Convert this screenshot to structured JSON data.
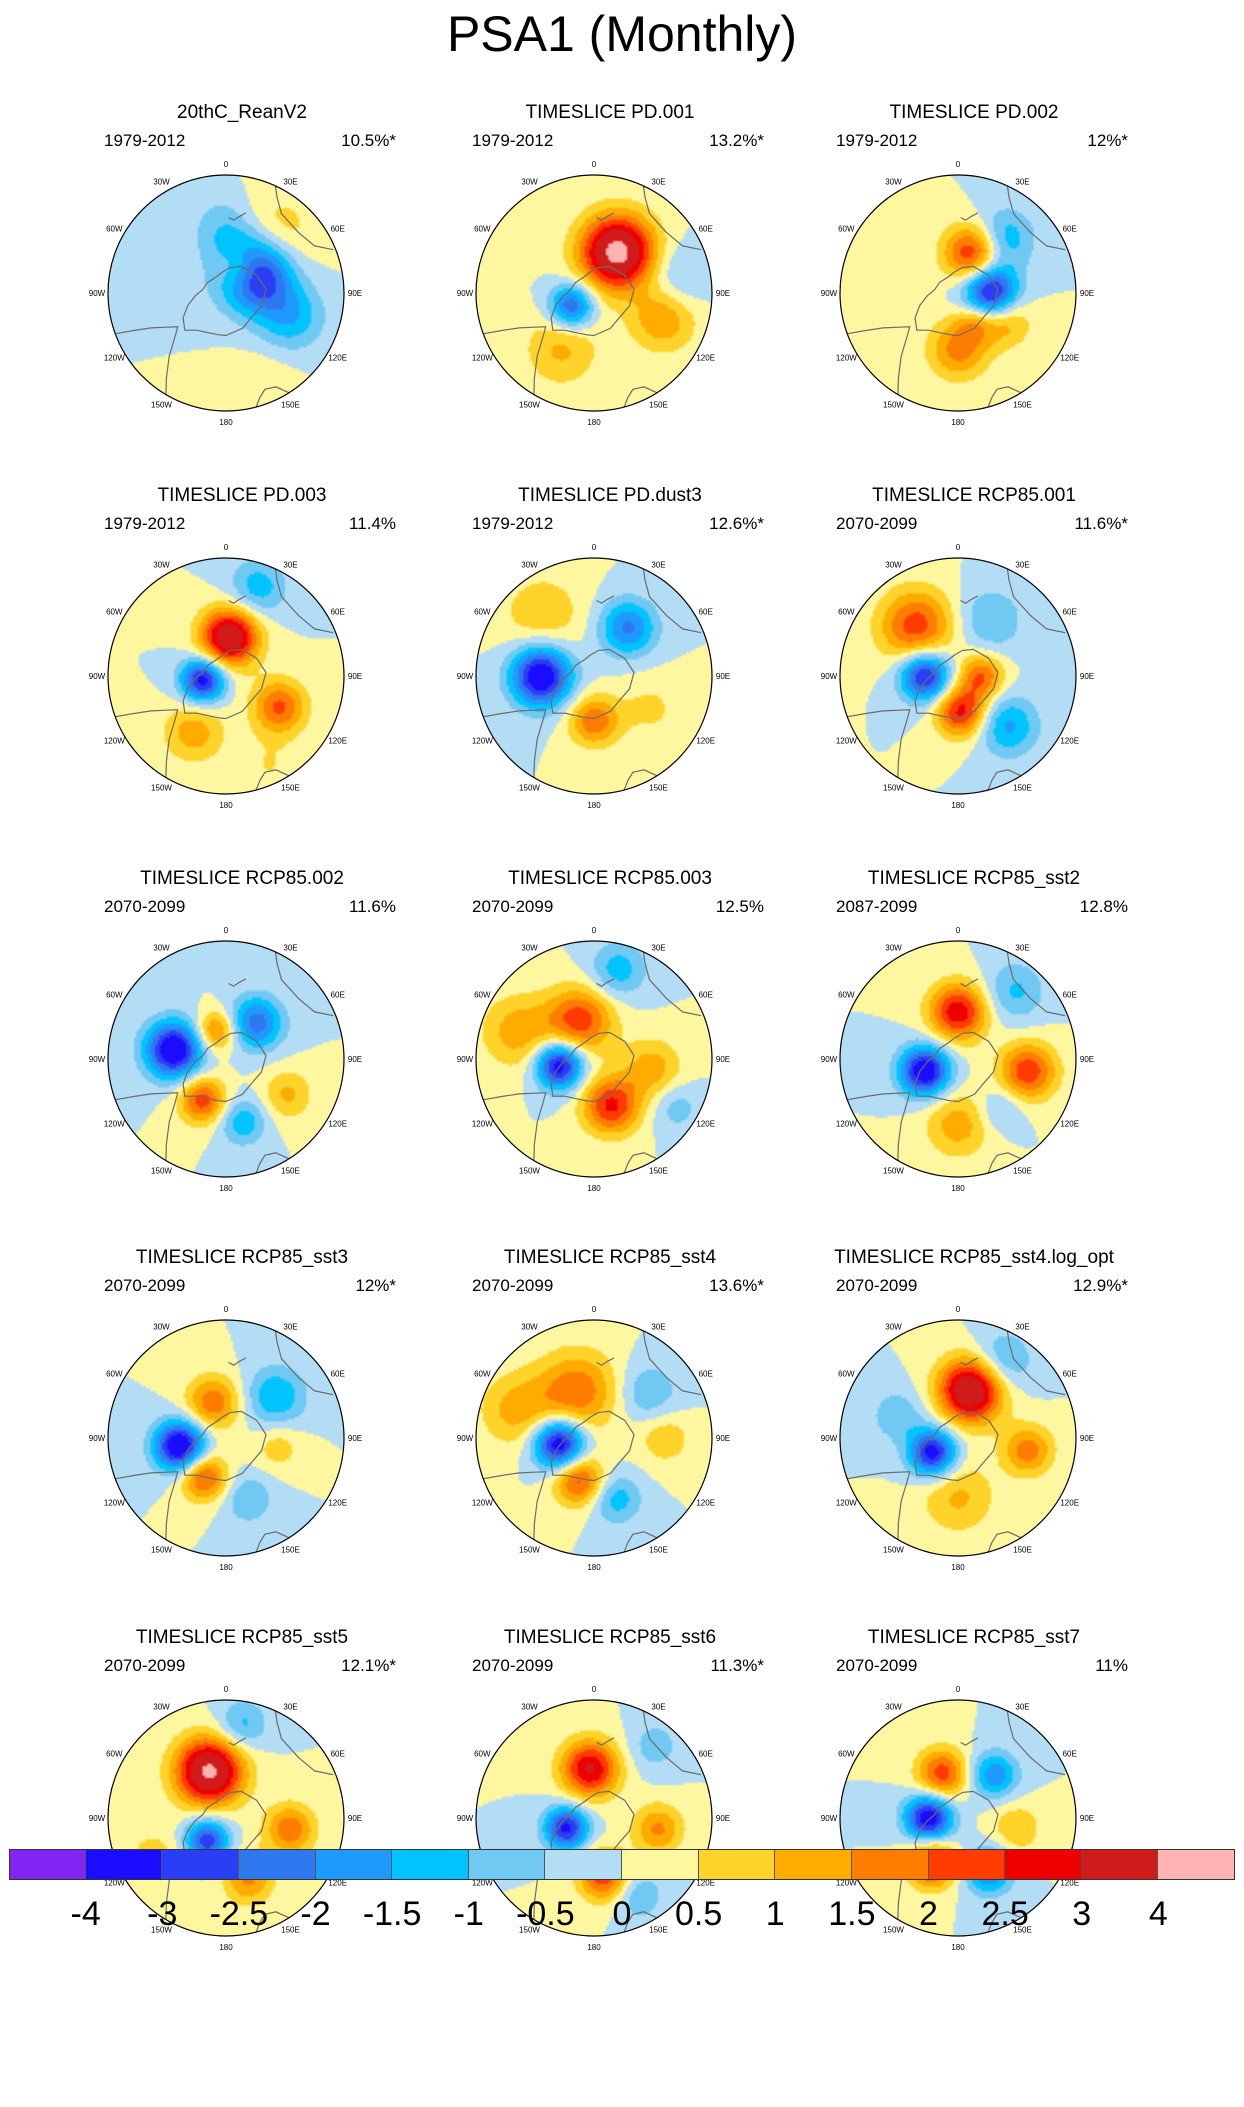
{
  "title": "PSA1 (Monthly)",
  "lon_labels": [
    "0",
    "30E",
    "60E",
    "90E",
    "120E",
    "150E",
    "180",
    "150W",
    "120W",
    "90W",
    "60W",
    "30W"
  ],
  "panels": [
    {
      "title": "20thC_ReanV2",
      "period": "1979-2012",
      "variance": "10.5%*",
      "blobs": [
        {
          "lon": 127,
          "r": 0.3,
          "a": -3.9,
          "s": 0.22
        },
        {
          "lon": 152,
          "r": 0.24,
          "a": 1.7,
          "s": 0.14
        },
        {
          "lon": 140,
          "r": 0.62,
          "a": 1.1,
          "s": 0.25
        },
        {
          "lon": 70,
          "r": 0.58,
          "a": -1.4,
          "s": 0.2
        },
        {
          "lon": 180,
          "r": 0.55,
          "a": -0.9,
          "s": 0.2
        },
        {
          "lon": 20,
          "r": 0.85,
          "a": 0.5,
          "s": 0.2
        }
      ]
    },
    {
      "title": "TIMESLICE PD.001",
      "period": "1979-2012",
      "variance": "13.2%*",
      "blobs": [
        {
          "lon": 300,
          "r": 0.22,
          "a": -2.6,
          "s": 0.13
        },
        {
          "lon": 150,
          "r": 0.4,
          "a": 4.4,
          "s": 0.22
        },
        {
          "lon": 70,
          "r": 0.62,
          "a": 1.5,
          "s": 0.2
        },
        {
          "lon": 330,
          "r": 0.55,
          "a": 1.1,
          "s": 0.22
        },
        {
          "lon": 100,
          "r": 0.7,
          "a": -0.8,
          "s": 0.2
        }
      ]
    },
    {
      "title": "TIMESLICE PD.002",
      "period": "1979-2012",
      "variance": "12%*",
      "blobs": [
        {
          "lon": 90,
          "r": 0.28,
          "a": -3.7,
          "s": 0.16
        },
        {
          "lon": 160,
          "r": 0.36,
          "a": 2.7,
          "s": 0.17
        },
        {
          "lon": 0,
          "r": 0.48,
          "a": 1.7,
          "s": 0.18
        },
        {
          "lon": 60,
          "r": 0.45,
          "a": 1.5,
          "s": 0.16
        },
        {
          "lon": 140,
          "r": 0.6,
          "a": -1.5,
          "s": 0.18
        },
        {
          "lon": 30,
          "r": 0.28,
          "a": 1.1,
          "s": 0.12
        }
      ]
    },
    {
      "title": "TIMESLICE PD.003",
      "period": "1979-2012",
      "variance": "11.4%",
      "blobs": [
        {
          "lon": 280,
          "r": 0.2,
          "a": -3.4,
          "s": 0.13
        },
        {
          "lon": 175,
          "r": 0.33,
          "a": 3.8,
          "s": 0.17
        },
        {
          "lon": 60,
          "r": 0.52,
          "a": 2.1,
          "s": 0.16
        },
        {
          "lon": 330,
          "r": 0.55,
          "a": 1.3,
          "s": 0.18
        },
        {
          "lon": 160,
          "r": 0.8,
          "a": -1.3,
          "s": 0.17
        },
        {
          "lon": 25,
          "r": 0.85,
          "a": 0.5,
          "s": 0.2
        }
      ]
    },
    {
      "title": "TIMESLICE PD.dust3",
      "period": "1979-2012",
      "variance": "12.6%*",
      "blobs": [
        {
          "lon": 270,
          "r": 0.45,
          "a": -3.8,
          "s": 0.18
        },
        {
          "lon": 0,
          "r": 0.38,
          "a": 1.9,
          "s": 0.15
        },
        {
          "lon": 145,
          "r": 0.5,
          "a": -2.1,
          "s": 0.17
        },
        {
          "lon": 220,
          "r": 0.68,
          "a": 0.9,
          "s": 0.25
        },
        {
          "lon": 60,
          "r": 0.55,
          "a": 0.6,
          "s": 0.2
        }
      ]
    },
    {
      "title": "TIMESLICE RCP85.001",
      "period": "2070-2099",
      "variance": "11.6%*",
      "blobs": [
        {
          "lon": 270,
          "r": 0.28,
          "a": -3.3,
          "s": 0.15
        },
        {
          "lon": 5,
          "r": 0.3,
          "a": 2.7,
          "s": 0.15
        },
        {
          "lon": 90,
          "r": 0.2,
          "a": 2.0,
          "s": 0.13
        },
        {
          "lon": 220,
          "r": 0.55,
          "a": 2.3,
          "s": 0.22
        },
        {
          "lon": 45,
          "r": 0.6,
          "a": -1.6,
          "s": 0.18
        },
        {
          "lon": 150,
          "r": 0.55,
          "a": -1.0,
          "s": 0.2
        }
      ]
    },
    {
      "title": "TIMESLICE RCP85.002",
      "period": "2070-2099",
      "variance": "11.6%",
      "blobs": [
        {
          "lon": 260,
          "r": 0.45,
          "a": -3.8,
          "s": 0.17
        },
        {
          "lon": 330,
          "r": 0.4,
          "a": 2.3,
          "s": 0.14
        },
        {
          "lon": 200,
          "r": 0.25,
          "a": 1.9,
          "s": 0.12
        },
        {
          "lon": 140,
          "r": 0.4,
          "a": -2.3,
          "s": 0.16
        },
        {
          "lon": 15,
          "r": 0.55,
          "a": -1.4,
          "s": 0.14
        },
        {
          "lon": 60,
          "r": 0.6,
          "a": 1.1,
          "s": 0.15
        }
      ]
    },
    {
      "title": "TIMESLICE RCP85.003",
      "period": "2070-2099",
      "variance": "12.5%",
      "blobs": [
        {
          "lon": 280,
          "r": 0.3,
          "a": -3.6,
          "s": 0.14
        },
        {
          "lon": 20,
          "r": 0.42,
          "a": 2.6,
          "s": 0.17
        },
        {
          "lon": 200,
          "r": 0.35,
          "a": 2.3,
          "s": 0.2
        },
        {
          "lon": 250,
          "r": 0.68,
          "a": 1.3,
          "s": 0.22
        },
        {
          "lon": 80,
          "r": 0.5,
          "a": 1.3,
          "s": 0.18
        },
        {
          "lon": 165,
          "r": 0.78,
          "a": -1.3,
          "s": 0.17
        },
        {
          "lon": 60,
          "r": 0.8,
          "a": -0.8,
          "s": 0.15
        }
      ]
    },
    {
      "title": "TIMESLICE RCP85_sst2",
      "period": "2087-2099",
      "variance": "12.8%",
      "blobs": [
        {
          "lon": 290,
          "r": 0.3,
          "a": -3.7,
          "s": 0.15
        },
        {
          "lon": 180,
          "r": 0.4,
          "a": 2.9,
          "s": 0.17
        },
        {
          "lon": 80,
          "r": 0.6,
          "a": 2.4,
          "s": 0.17
        },
        {
          "lon": 0,
          "r": 0.55,
          "a": 1.3,
          "s": 0.2
        },
        {
          "lon": 140,
          "r": 0.75,
          "a": -1.1,
          "s": 0.18
        },
        {
          "lon": 40,
          "r": 0.55,
          "a": -0.8,
          "s": 0.14
        }
      ]
    },
    {
      "title": "TIMESLICE RCP85_sst3",
      "period": "2070-2099",
      "variance": "12%*",
      "blobs": [
        {
          "lon": 280,
          "r": 0.4,
          "a": -3.9,
          "s": 0.15
        },
        {
          "lon": 330,
          "r": 0.38,
          "a": 2.3,
          "s": 0.14
        },
        {
          "lon": 200,
          "r": 0.32,
          "a": 1.9,
          "s": 0.16
        },
        {
          "lon": 130,
          "r": 0.55,
          "a": -1.5,
          "s": 0.18
        },
        {
          "lon": 20,
          "r": 0.55,
          "a": -1.0,
          "s": 0.15
        },
        {
          "lon": 80,
          "r": 0.45,
          "a": 0.8,
          "s": 0.14
        }
      ]
    },
    {
      "title": "TIMESLICE RCP85_sst4",
      "period": "2070-2099",
      "variance": "13.6%*",
      "blobs": [
        {
          "lon": 280,
          "r": 0.3,
          "a": -3.8,
          "s": 0.15
        },
        {
          "lon": 340,
          "r": 0.38,
          "a": 2.3,
          "s": 0.15
        },
        {
          "lon": 200,
          "r": 0.42,
          "a": 1.9,
          "s": 0.24
        },
        {
          "lon": 250,
          "r": 0.7,
          "a": 1.2,
          "s": 0.22
        },
        {
          "lon": 20,
          "r": 0.55,
          "a": -1.3,
          "s": 0.15
        },
        {
          "lon": 130,
          "r": 0.6,
          "a": -1.0,
          "s": 0.18
        },
        {
          "lon": 90,
          "r": 0.6,
          "a": 0.9,
          "s": 0.16
        }
      ]
    },
    {
      "title": "TIMESLICE RCP85_sst4.log_opt",
      "period": "2070-2099",
      "variance": "12.9%*",
      "blobs": [
        {
          "lon": 300,
          "r": 0.25,
          "a": -3.4,
          "s": 0.14
        },
        {
          "lon": 165,
          "r": 0.42,
          "a": 4.0,
          "s": 0.19
        },
        {
          "lon": 80,
          "r": 0.6,
          "a": 1.8,
          "s": 0.15
        },
        {
          "lon": 0,
          "r": 0.5,
          "a": 1.1,
          "s": 0.22
        },
        {
          "lon": 150,
          "r": 0.75,
          "a": -1.2,
          "s": 0.18
        },
        {
          "lon": 250,
          "r": 0.55,
          "a": -0.9,
          "s": 0.16
        }
      ]
    },
    {
      "title": "TIMESLICE RCP85_sst5",
      "period": "2070-2099",
      "variance": "12.1%*",
      "blobs": [
        {
          "lon": 320,
          "r": 0.25,
          "a": -2.9,
          "s": 0.13
        },
        {
          "lon": 200,
          "r": 0.42,
          "a": 4.2,
          "s": 0.2
        },
        {
          "lon": 20,
          "r": 0.55,
          "a": 1.6,
          "s": 0.15
        },
        {
          "lon": 80,
          "r": 0.55,
          "a": 1.9,
          "s": 0.15
        },
        {
          "lon": 170,
          "r": 0.8,
          "a": -1.2,
          "s": 0.15
        },
        {
          "lon": 300,
          "r": 0.7,
          "a": 0.8,
          "s": 0.18
        }
      ]
    },
    {
      "title": "TIMESLICE RCP85_sst6",
      "period": "2070-2099",
      "variance": "11.3%*",
      "blobs": [
        {
          "lon": 290,
          "r": 0.25,
          "a": -3.2,
          "s": 0.13
        },
        {
          "lon": 185,
          "r": 0.42,
          "a": 3.1,
          "s": 0.17
        },
        {
          "lon": 10,
          "r": 0.5,
          "a": 2.4,
          "s": 0.15
        },
        {
          "lon": 80,
          "r": 0.55,
          "a": 1.6,
          "s": 0.15
        },
        {
          "lon": 30,
          "r": 0.75,
          "a": -1.0,
          "s": 0.15
        },
        {
          "lon": 140,
          "r": 0.8,
          "a": -0.8,
          "s": 0.15
        }
      ]
    },
    {
      "title": "TIMESLICE RCP85_sst7",
      "period": "2070-2099",
      "variance": "11%",
      "blobs": [
        {
          "lon": 270,
          "r": 0.25,
          "a": -3.6,
          "s": 0.14
        },
        {
          "lon": 330,
          "r": 0.45,
          "a": 2.7,
          "s": 0.14
        },
        {
          "lon": 30,
          "r": 0.52,
          "a": -2.1,
          "s": 0.14
        },
        {
          "lon": 200,
          "r": 0.4,
          "a": 2.3,
          "s": 0.15
        },
        {
          "lon": 140,
          "r": 0.48,
          "a": -1.9,
          "s": 0.14
        },
        {
          "lon": 80,
          "r": 0.5,
          "a": 1.0,
          "s": 0.15
        }
      ]
    }
  ],
  "colorbar": {
    "levels": [
      "-4",
      "-3",
      "-2.5",
      "-2",
      "-1.5",
      "-1",
      "-0.5",
      "0",
      "0.5",
      "1",
      "1.5",
      "2",
      "2.5",
      "3",
      "4"
    ],
    "colors": [
      "#8126f2",
      "#1a0dff",
      "#2a3ef5",
      "#2e78ef",
      "#1e9aff",
      "#00c4ff",
      "#6fc9f3",
      "#b3dcf5",
      "#fff6a0",
      "#ffd32a",
      "#ffab00",
      "#ff7d00",
      "#ff3c00",
      "#ee0000",
      "#d11a1a",
      "#ffb3b3"
    ]
  }
}
